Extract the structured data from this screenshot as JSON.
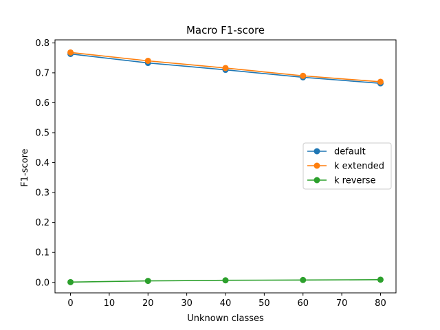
{
  "chart_data": {
    "type": "line",
    "title": "Macro F1-score",
    "xlabel": "Unknown classes",
    "ylabel": "F1-score",
    "x": [
      0,
      20,
      40,
      60,
      80
    ],
    "xlim": [
      -4,
      84
    ],
    "ylim": [
      -0.035,
      0.81
    ],
    "xticks": [
      0,
      10,
      20,
      30,
      40,
      50,
      60,
      70,
      80
    ],
    "yticks": [
      0.0,
      0.1,
      0.2,
      0.3,
      0.4,
      0.5,
      0.6,
      0.7,
      0.8
    ],
    "xtick_labels": [
      "0",
      "10",
      "20",
      "30",
      "40",
      "50",
      "60",
      "70",
      "80"
    ],
    "ytick_labels": [
      "0.0",
      "0.1",
      "0.2",
      "0.3",
      "0.4",
      "0.5",
      "0.6",
      "0.7",
      "0.8"
    ],
    "grid": false,
    "legend_position": "center-right",
    "series": [
      {
        "name": "default",
        "color": "#1f77b4",
        "values": [
          0.763,
          0.733,
          0.71,
          0.685,
          0.665
        ]
      },
      {
        "name": "k extended",
        "color": "#ff7f0e",
        "values": [
          0.768,
          0.74,
          0.716,
          0.69,
          0.67
        ]
      },
      {
        "name": "k reverse",
        "color": "#2ca02c",
        "values": [
          0.001,
          0.005,
          0.007,
          0.008,
          0.009
        ]
      }
    ]
  }
}
